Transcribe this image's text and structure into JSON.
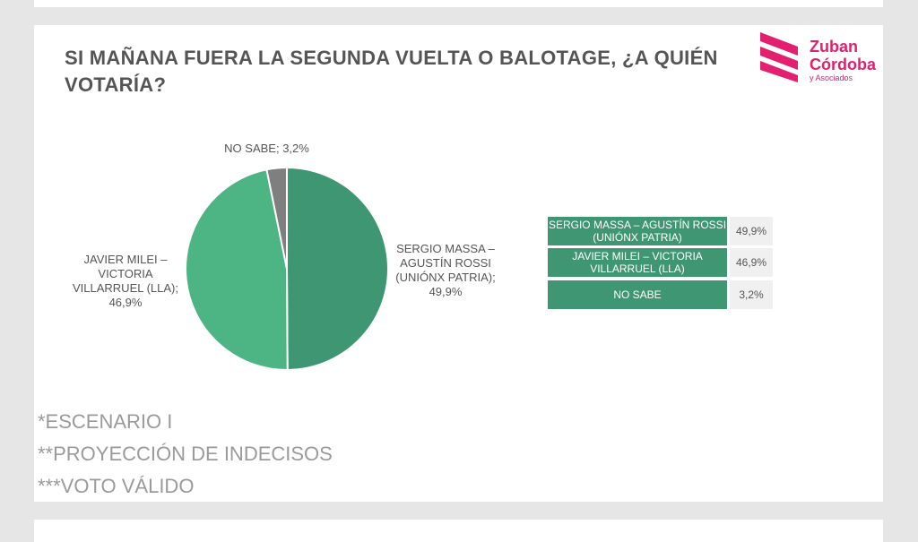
{
  "chart_data": {
    "type": "pie",
    "title": "SI MAÑANA FUERA LA SEGUNDA VUELTA O BALOTAGE, ¿A QUIÉN VOTARÍA?",
    "categories": [
      "SERGIO MASSA – AGUSTÍN ROSSI (UNIÓNX PATRIA)",
      "JAVIER MILEI – VICTORIA VILLARRUEL (LLA)",
      "NO SABE"
    ],
    "values": [
      49.9,
      46.9,
      3.2
    ],
    "value_labels": [
      "49,9%",
      "46,9%",
      "3,2%"
    ],
    "slice_labels": [
      "SERGIO MASSA – AGUSTÍN ROSSI (UNIÓNX PATRIA); 49,9%",
      "JAVIER MILEI – VICTORIA VILLARRUEL (LLA); 46,9%",
      "NO SABE; 3,2%"
    ],
    "colors": [
      "#3f9672",
      "#4db584",
      "#7f7f7f"
    ]
  },
  "footnotes": [
    "*ESCENARIO I",
    "**PROYECCIÓN DE INDECISOS",
    "***VOTO VÁLIDO"
  ],
  "logo": {
    "line1": "Zuban",
    "line2": "Córdoba",
    "line3": "y Asociados"
  }
}
